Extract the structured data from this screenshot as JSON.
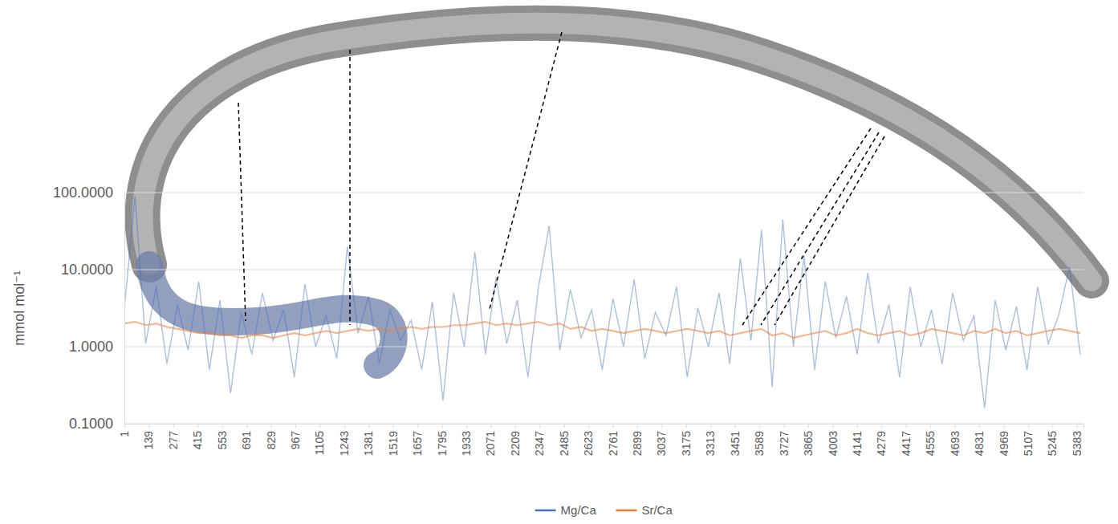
{
  "chart_data": {
    "type": "line",
    "y_label": "mmol mol⁻¹",
    "log": "y",
    "grid": true,
    "legend": "bottom",
    "x": [
      1,
      61,
      121,
      181,
      241,
      301,
      361,
      421,
      481,
      541,
      601,
      661,
      721,
      781,
      841,
      901,
      961,
      1021,
      1081,
      1141,
      1201,
      1261,
      1321,
      1381,
      1441,
      1501,
      1561,
      1621,
      1681,
      1741,
      1801,
      1861,
      1921,
      1981,
      2041,
      2101,
      2161,
      2221,
      2281,
      2341,
      2401,
      2461,
      2521,
      2581,
      2641,
      2701,
      2761,
      2821,
      2881,
      2941,
      3001,
      3061,
      3121,
      3181,
      3241,
      3301,
      3361,
      3421,
      3481,
      3541,
      3601,
      3661,
      3721,
      3781,
      3841,
      3901,
      3961,
      4021,
      4081,
      4141,
      4201,
      4261,
      4321,
      4381,
      4441,
      4501,
      4561,
      4621,
      4681,
      4741,
      4801,
      4861,
      4921,
      4981,
      5041,
      5101,
      5161,
      5221,
      5281,
      5341,
      5401
    ],
    "xlim": [
      1,
      5420
    ],
    "xticks": [
      1,
      139,
      277,
      415,
      553,
      691,
      829,
      967,
      1105,
      1243,
      1381,
      1519,
      1657,
      1795,
      1933,
      2071,
      2209,
      2347,
      2485,
      2623,
      2761,
      2899,
      3037,
      3175,
      3313,
      3451,
      3589,
      3727,
      3865,
      4003,
      4141,
      4279,
      4417,
      4555,
      4693,
      4831,
      4969,
      5107,
      5245,
      5383
    ],
    "ylim": [
      0.1,
      100
    ],
    "yticks": [
      {
        "value": 0.1,
        "label": "0.1000"
      },
      {
        "value": 1,
        "label": "1.0000"
      },
      {
        "value": 10,
        "label": "10.0000"
      },
      {
        "value": 100,
        "label": "100.0000"
      }
    ],
    "series": [
      {
        "name": "Mg/Ca",
        "color": "#4472c4",
        "values": [
          3.2,
          90,
          1.1,
          6.0,
          0.6,
          3.5,
          0.9,
          7.0,
          0.5,
          4.0,
          0.25,
          2.8,
          0.8,
          5.0,
          1.2,
          3.0,
          0.4,
          6.5,
          1.0,
          2.5,
          0.7,
          20,
          1.5,
          4.5,
          0.6,
          3.0,
          1.2,
          2.2,
          0.5,
          3.8,
          0.2,
          5.0,
          1.0,
          17,
          0.8,
          8.0,
          1.1,
          4.0,
          0.4,
          6.0,
          37,
          0.9,
          5.5,
          1.3,
          3.0,
          0.5,
          4.2,
          1.0,
          7.5,
          0.7,
          2.8,
          1.4,
          6.0,
          0.4,
          3.2,
          1.0,
          5.0,
          0.6,
          14,
          1.2,
          33,
          0.3,
          45,
          1.0,
          15,
          0.5,
          7.0,
          1.3,
          4.5,
          0.8,
          9.0,
          1.1,
          3.5,
          0.4,
          6.0,
          1.0,
          3.0,
          0.6,
          5.0,
          1.2,
          2.5,
          0.16,
          4.0,
          0.9,
          3.3,
          0.5,
          6.0,
          1.1,
          2.6,
          11,
          0.8
        ]
      },
      {
        "name": "Sr/Ca",
        "color": "#ed7d31",
        "values": [
          2.0,
          2.1,
          1.9,
          2.0,
          1.8,
          1.7,
          1.6,
          1.5,
          1.5,
          1.4,
          1.4,
          1.3,
          1.4,
          1.4,
          1.3,
          1.4,
          1.5,
          1.4,
          1.5,
          1.6,
          1.5,
          1.6,
          1.7,
          1.6,
          1.7,
          1.6,
          1.7,
          1.8,
          1.7,
          1.8,
          1.8,
          1.9,
          1.9,
          2.0,
          2.1,
          1.9,
          2.0,
          1.9,
          2.0,
          2.1,
          1.9,
          2.0,
          1.7,
          1.8,
          1.6,
          1.7,
          1.6,
          1.5,
          1.6,
          1.7,
          1.6,
          1.5,
          1.6,
          1.7,
          1.6,
          1.5,
          1.6,
          1.4,
          1.5,
          1.6,
          1.7,
          1.4,
          1.5,
          1.3,
          1.4,
          1.5,
          1.6,
          1.4,
          1.5,
          1.7,
          1.5,
          1.4,
          1.5,
          1.6,
          1.4,
          1.5,
          1.7,
          1.6,
          1.5,
          1.4,
          1.6,
          1.5,
          1.7,
          1.5,
          1.6,
          1.4,
          1.5,
          1.6,
          1.7,
          1.6,
          1.5
        ]
      }
    ]
  }
}
